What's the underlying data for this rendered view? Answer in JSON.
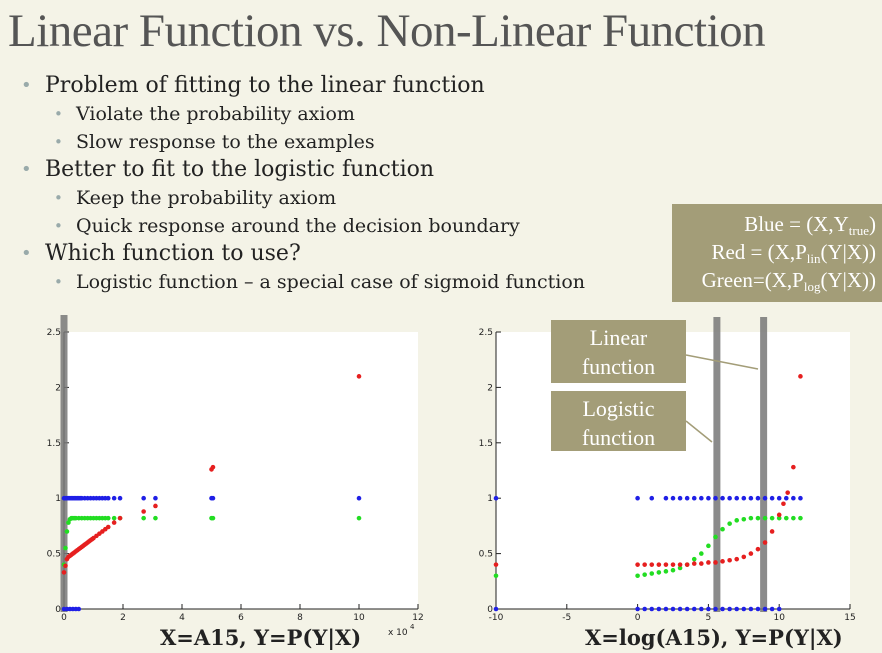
{
  "slide": {
    "title": "Linear Function vs. Non-Linear Function",
    "bullets": [
      {
        "level": 1,
        "text": "Problem of fitting to the linear function"
      },
      {
        "level": 2,
        "text": "Violate the probability axiom"
      },
      {
        "level": 2,
        "text": "Slow response to the examples"
      },
      {
        "level": 1,
        "text": "Better to fit to the logistic function"
      },
      {
        "level": 2,
        "text": "Keep the probability axiom"
      },
      {
        "level": 2,
        "text": "Quick response around the decision boundary"
      },
      {
        "level": 1,
        "text": "Which function to use?"
      },
      {
        "level": 2,
        "text": "Logistic function – a special case of sigmoid function"
      }
    ],
    "legend": {
      "blue": {
        "pre": "Blue = (X,Y",
        "sub": "true",
        "post": ")"
      },
      "red": {
        "pre": "Red = (X,P",
        "sub": "lin",
        "post": "(Y|X))"
      },
      "green": {
        "pre": "Green=(X,P",
        "sub": "log",
        "post": "(Y|X))"
      }
    },
    "callouts": {
      "linear": [
        "Linear",
        "function"
      ],
      "logistic": [
        "Logistic",
        "function"
      ]
    },
    "colors": {
      "background": "#f4f3e7",
      "callout": "#a39d78",
      "blue": "#1f1fe6",
      "red": "#e61f1f",
      "green": "#22dd22",
      "gray_bar": "#777777"
    }
  },
  "chart_data": [
    {
      "type": "scatter",
      "caption": "X=A15, Y=P(Y|X)",
      "xlim": [
        0,
        12
      ],
      "ylim": [
        0,
        2.5
      ],
      "xticks": [
        "0",
        "2",
        "4",
        "6",
        "8",
        "10",
        "12"
      ],
      "yticks": [
        "0",
        "0.5",
        "1",
        "1.5",
        "2",
        "2.5"
      ],
      "x_multiplier": "x 10",
      "x_multiplier_exp": "4",
      "series": [
        {
          "color": "blue",
          "x": [
            0,
            0.05,
            0.1,
            0.15,
            0.2,
            0.25,
            0.3,
            0.35,
            0.4,
            0.45,
            0.5,
            0.55,
            0.6,
            0.7,
            0.8,
            0.9,
            1.0,
            1.1,
            1.2,
            1.3,
            1.4,
            1.5,
            1.7,
            1.9,
            2.7,
            3.1,
            5.0,
            5.05,
            10.0,
            0,
            0.1,
            0.2,
            0.3,
            0.4,
            0.5
          ],
          "y": [
            1,
            1,
            1,
            1,
            1,
            1,
            1,
            1,
            1,
            1,
            1,
            1,
            1,
            1,
            1,
            1,
            1,
            1,
            1,
            1,
            1,
            1,
            1,
            1,
            1,
            1,
            1,
            1,
            1,
            0,
            0,
            0,
            0,
            0,
            0
          ]
        },
        {
          "color": "green",
          "x": [
            0,
            0.05,
            0.1,
            0.15,
            0.2,
            0.25,
            0.3,
            0.35,
            0.4,
            0.5,
            0.6,
            0.7,
            0.8,
            0.9,
            1.0,
            1.1,
            1.2,
            1.3,
            1.4,
            1.5,
            1.7,
            1.9,
            2.7,
            3.1,
            5.0,
            5.05,
            10.0
          ],
          "y": [
            0.4,
            0.55,
            0.7,
            0.78,
            0.81,
            0.82,
            0.82,
            0.82,
            0.82,
            0.82,
            0.82,
            0.82,
            0.82,
            0.82,
            0.82,
            0.82,
            0.82,
            0.82,
            0.82,
            0.82,
            0.82,
            0.82,
            0.82,
            0.82,
            0.82,
            0.82,
            0.82
          ]
        },
        {
          "color": "red",
          "x": [
            0,
            0.05,
            0.1,
            0.15,
            0.2,
            0.25,
            0.3,
            0.35,
            0.4,
            0.45,
            0.5,
            0.55,
            0.6,
            0.65,
            0.7,
            0.75,
            0.8,
            0.85,
            0.9,
            0.95,
            1.0,
            1.1,
            1.2,
            1.3,
            1.4,
            1.5,
            1.7,
            1.9,
            2.7,
            3.1,
            5.0,
            5.05,
            10.0
          ],
          "y": [
            0.33,
            0.39,
            0.45,
            0.47,
            0.48,
            0.49,
            0.5,
            0.51,
            0.52,
            0.53,
            0.54,
            0.55,
            0.56,
            0.57,
            0.58,
            0.59,
            0.6,
            0.61,
            0.62,
            0.63,
            0.64,
            0.66,
            0.68,
            0.7,
            0.72,
            0.74,
            0.78,
            0.82,
            0.88,
            0.93,
            1.26,
            1.28,
            2.1
          ]
        }
      ]
    },
    {
      "type": "scatter",
      "caption": "X=log(A15), Y=P(Y|X)",
      "xlim": [
        -10,
        15
      ],
      "ylim": [
        0,
        2.5
      ],
      "xticks": [
        "-10",
        "-5",
        "0",
        "5",
        "10",
        "15"
      ],
      "yticks": [
        "0",
        "0.5",
        "1",
        "1.5",
        "2",
        "2.5"
      ],
      "series": [
        {
          "color": "blue",
          "x": [
            -10,
            0,
            1,
            2,
            2.5,
            3,
            3.5,
            4,
            4.5,
            5,
            5.5,
            6,
            6.5,
            7,
            7.5,
            8,
            8.5,
            9,
            9.5,
            10,
            10.5,
            11,
            11.5,
            -10,
            0,
            0.5,
            1,
            1.5,
            2,
            2.5,
            3,
            3.5,
            4,
            4.5,
            5,
            5.5,
            6,
            6.5,
            7,
            7.5,
            8,
            8.5,
            9,
            9.5,
            10
          ],
          "y": [
            1,
            1,
            1,
            1,
            1,
            1,
            1,
            1,
            1,
            1,
            1,
            1,
            1,
            1,
            1,
            1,
            1,
            1,
            1,
            1,
            1,
            1,
            1,
            0,
            0,
            0,
            0,
            0,
            0,
            0,
            0,
            0,
            0,
            0,
            0,
            0,
            0,
            0,
            0,
            0,
            0,
            0,
            0,
            0,
            0
          ]
        },
        {
          "color": "green",
          "x": [
            -10,
            0,
            0.5,
            1,
            1.5,
            2,
            2.5,
            3,
            3.5,
            4,
            4.5,
            5,
            5.5,
            6,
            6.5,
            7,
            7.5,
            8,
            8.5,
            9,
            9.5,
            10,
            10.5,
            11,
            11.5
          ],
          "y": [
            0.3,
            0.3,
            0.31,
            0.32,
            0.33,
            0.34,
            0.35,
            0.37,
            0.4,
            0.45,
            0.5,
            0.57,
            0.65,
            0.72,
            0.77,
            0.8,
            0.81,
            0.82,
            0.82,
            0.82,
            0.82,
            0.82,
            0.82,
            0.82,
            0.82
          ]
        },
        {
          "color": "red",
          "x": [
            -10,
            0,
            0.5,
            1,
            1.5,
            2,
            2.5,
            3,
            3.5,
            4,
            4.5,
            5,
            5.5,
            6,
            6.5,
            7,
            7.5,
            8,
            8.5,
            9,
            9.5,
            10,
            10.3,
            10.6,
            11,
            11.5
          ],
          "y": [
            0.4,
            0.4,
            0.4,
            0.4,
            0.4,
            0.4,
            0.4,
            0.4,
            0.4,
            0.41,
            0.41,
            0.42,
            0.42,
            0.43,
            0.44,
            0.45,
            0.47,
            0.5,
            0.54,
            0.6,
            0.7,
            0.85,
            0.95,
            1.05,
            1.28,
            2.1
          ]
        }
      ]
    }
  ]
}
